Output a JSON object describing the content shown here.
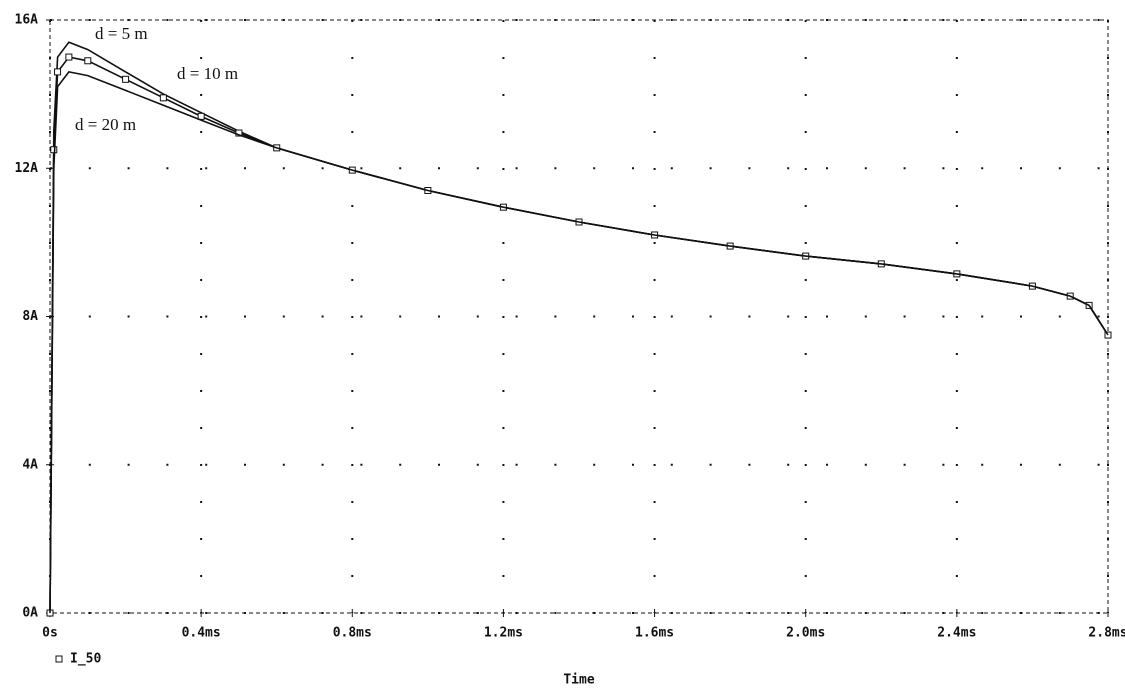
{
  "chart_data": {
    "type": "line",
    "x_label": "Time",
    "legend": "I_50",
    "x": [
      0,
      0.01,
      0.02,
      0.05,
      0.1,
      0.2,
      0.3,
      0.4,
      0.5,
      0.6,
      0.8,
      1.0,
      1.2,
      1.4,
      1.6,
      1.8,
      2.0,
      2.2,
      2.4,
      2.6,
      2.7,
      2.75,
      2.8
    ],
    "series": [
      {
        "name": "d = 5 m",
        "color": "#111111",
        "values": [
          0,
          13,
          15.0,
          15.4,
          15.2,
          14.6,
          14.0,
          13.5,
          13.0,
          12.55,
          11.95,
          11.4,
          10.95,
          10.55,
          10.2,
          9.9,
          9.63,
          9.42,
          9.15,
          8.82,
          8.55,
          8.3,
          7.5
        ]
      },
      {
        "name": "d = 10 m",
        "color": "#111111",
        "marker": "square",
        "values": [
          0,
          12.5,
          14.6,
          15.0,
          14.9,
          14.4,
          13.9,
          13.4,
          12.95,
          12.55,
          11.95,
          11.4,
          10.95,
          10.55,
          10.2,
          9.9,
          9.63,
          9.42,
          9.15,
          8.82,
          8.55,
          8.3,
          7.5
        ]
      },
      {
        "name": "d = 20 m",
        "color": "#111111",
        "values": [
          0,
          12,
          14.2,
          14.6,
          14.5,
          14.1,
          13.7,
          13.3,
          12.9,
          12.55,
          11.95,
          11.4,
          10.95,
          10.55,
          10.2,
          9.9,
          9.63,
          9.42,
          9.15,
          8.82,
          8.55,
          8.3,
          7.5
        ]
      }
    ],
    "xlim": [
      0,
      2.8
    ],
    "xticks": [
      {
        "value": 0,
        "label": "0s"
      },
      {
        "value": 0.4,
        "label": "0.4ms"
      },
      {
        "value": 0.8,
        "label": "0.8ms"
      },
      {
        "value": 1.2,
        "label": "1.2ms"
      },
      {
        "value": 1.6,
        "label": "1.6ms"
      },
      {
        "value": 2.0,
        "label": "2.0ms"
      },
      {
        "value": 2.4,
        "label": "2.4ms"
      },
      {
        "value": 2.8,
        "label": "2.8ms"
      }
    ],
    "ylim": [
      0,
      16
    ],
    "yticks": [
      {
        "value": 0,
        "label": "0A"
      },
      {
        "value": 4,
        "label": "4A"
      },
      {
        "value": 8,
        "label": "8A"
      },
      {
        "value": 12,
        "label": "12A"
      },
      {
        "value": 16,
        "label": "16A"
      }
    ],
    "grid": true
  }
}
